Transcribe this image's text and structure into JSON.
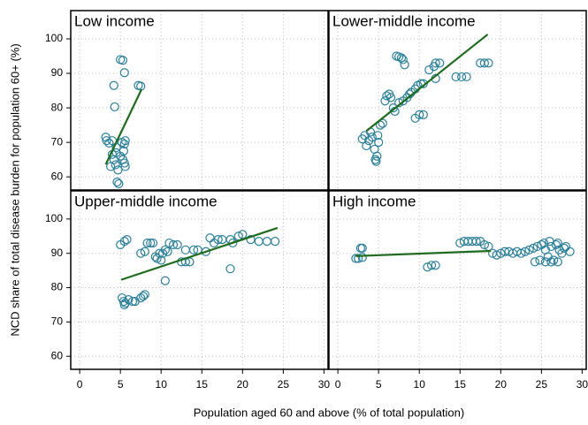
{
  "chart_data": [
    {
      "type": "scatter",
      "title": "Low income",
      "ylabel": "NCD share of total disease burden for population 60+ (%)",
      "xlabel": "Population aged 60 and above (% of total population)",
      "x": [
        3.2,
        3.3,
        3.6,
        4.0,
        4.2,
        4.3,
        4.5,
        4.2,
        4.4,
        4.7,
        4.6,
        4.8,
        5.0,
        5.3,
        5.5,
        5.2,
        5.5,
        5.4,
        5.3,
        5.5,
        5.6,
        5.0,
        4.0,
        3.8,
        7.2,
        7.5,
        4.5,
        5.6
      ],
      "y": [
        71.5,
        70.5,
        69.8,
        70.5,
        86.5,
        80.3,
        67,
        65,
        63.5,
        62,
        58.5,
        58,
        94,
        93.8,
        90.2,
        70,
        69.5,
        67.5,
        65,
        64,
        63,
        66,
        66.5,
        63,
        86.5,
        86.3,
        68.5,
        70.5
      ],
      "color": "#2b7f99",
      "fit": {
        "x": [
          3.2,
          7.6
        ],
        "y": [
          63.6,
          85.4
        ],
        "color": "#1e6b1e"
      },
      "xlim": [
        -1.1,
        30.5
      ],
      "ylim": [
        56.2,
        108.2
      ],
      "xticks": [
        0,
        5,
        10,
        15,
        20,
        25,
        30
      ],
      "yticks": [
        60,
        70,
        80,
        90,
        100
      ],
      "grid": true
    },
    {
      "type": "scatter",
      "title": "Lower-middle income",
      "x": [
        3.0,
        3.3,
        3.5,
        3.8,
        4.0,
        4.2,
        4.5,
        4.6,
        4.7,
        4.8,
        5.0,
        4.9,
        5.2,
        5.5,
        5.8,
        6.0,
        6.3,
        6.5,
        6.8,
        7.0,
        7.2,
        7.5,
        7.8,
        8.0,
        8.2,
        8.5,
        8.8,
        9.0,
        9.5,
        9.8,
        10.2,
        10.5,
        9.5,
        10.0,
        10.5,
        11.2,
        11.8,
        12.0,
        12.5,
        12.0,
        14.5,
        15.2,
        15.8,
        17.5,
        18.0,
        18.5,
        7.5,
        8.0
      ],
      "y": [
        71,
        72,
        69,
        70.5,
        73,
        71.5,
        68,
        65,
        64.5,
        66,
        70,
        72,
        75,
        75.5,
        82,
        83.5,
        84,
        83,
        80,
        79,
        95,
        94.8,
        94.5,
        94,
        92.5,
        83,
        84,
        84.5,
        85.5,
        86.5,
        87,
        87,
        77,
        78,
        78,
        91,
        92,
        93,
        93,
        88.5,
        89,
        89,
        89,
        93,
        93,
        93,
        81.5,
        82
      ],
      "color": "#2b7f99",
      "fit": {
        "x": [
          3.5,
          18.4
        ],
        "y": [
          73.3,
          101.3
        ],
        "color": "#1e6b1e"
      },
      "xlim": [
        -1.1,
        30.5
      ],
      "ylim": [
        56.2,
        108.2
      ],
      "xticks": [
        0,
        5,
        10,
        15,
        20,
        25,
        30
      ],
      "yticks": [
        60,
        70,
        80,
        90,
        100
      ],
      "grid": true
    },
    {
      "type": "scatter",
      "title": "Upper-middle income",
      "x": [
        5.0,
        5.5,
        5.8,
        5.2,
        5.4,
        5.6,
        5.5,
        6.0,
        6.5,
        6.8,
        7.5,
        7.8,
        8.0,
        7.5,
        8.0,
        8.3,
        8.7,
        9.0,
        9.3,
        9.5,
        9.8,
        10.2,
        10.5,
        10.8,
        10.0,
        11.0,
        11.5,
        12.0,
        12.5,
        13.0,
        13.5,
        13.0,
        14.0,
        14.5,
        15.5,
        16.0,
        16.5,
        17.0,
        17.5,
        18.5,
        18.8,
        19.5,
        20.0,
        21.0,
        22.0,
        23.0,
        24.0,
        18.5,
        10.5
      ],
      "y": [
        92.5,
        93.5,
        94,
        77,
        76,
        75.5,
        75,
        76.5,
        76,
        76,
        77,
        77.5,
        78,
        90,
        90.5,
        93,
        93,
        93,
        89,
        88.5,
        90,
        90,
        91,
        90.5,
        88,
        93,
        92.5,
        92.5,
        87.5,
        87.5,
        87.5,
        91,
        91,
        91,
        90.5,
        94.5,
        93,
        94,
        94,
        94,
        93,
        95,
        95.5,
        94,
        93.5,
        93.5,
        93.5,
        85.5,
        82
      ],
      "color": "#2b7f99",
      "fit": {
        "x": [
          5.1,
          24.3
        ],
        "y": [
          82.3,
          97.4
        ],
        "color": "#1e6b1e"
      },
      "xlim": [
        -1.1,
        30.5
      ],
      "ylim": [
        56.2,
        108.2
      ],
      "xticks": [
        0,
        5,
        10,
        15,
        20,
        25,
        30
      ],
      "yticks": [
        60,
        70,
        80,
        90,
        100
      ],
      "grid": true
    },
    {
      "type": "scatter",
      "title": "High income",
      "x": [
        2.2,
        2.5,
        2.8,
        3.0,
        3.0,
        11.0,
        11.5,
        12.0,
        15.0,
        15.5,
        16.0,
        16.5,
        17.0,
        17.5,
        18.0,
        18.5,
        19.0,
        19.5,
        20.0,
        20.5,
        21.0,
        21.5,
        22.0,
        22.5,
        23.0,
        23.5,
        24.0,
        24.5,
        24.2,
        24.8,
        25.0,
        25.3,
        25.5,
        25.8,
        26.0,
        26.2,
        26.5,
        26.8,
        27.0,
        27.2,
        27.5,
        27.8,
        28.0,
        28.5,
        25.5,
        26.2,
        27.0
      ],
      "y": [
        88.5,
        88.5,
        91.5,
        91.5,
        88.8,
        86,
        86.5,
        86.5,
        93,
        93.5,
        93.5,
        93.5,
        93.5,
        93.5,
        92.5,
        92,
        90,
        89.5,
        90,
        90.5,
        90.5,
        90,
        90.5,
        90,
        90.5,
        91,
        91.5,
        92,
        87.5,
        88,
        92.5,
        93,
        91,
        89,
        93.5,
        92,
        88,
        92.5,
        93,
        91,
        90,
        91.5,
        92,
        90.5,
        87.5,
        87.5,
        87.5
      ],
      "color": "#2b7f99",
      "fit": {
        "x": [
          2.2,
          18.8
        ],
        "y": [
          89.2,
          90.7
        ],
        "color": "#1e6b1e"
      },
      "xlim": [
        -1.1,
        30.5
      ],
      "ylim": [
        56.2,
        108.2
      ],
      "xticks": [
        0,
        5,
        10,
        15,
        20,
        25,
        30
      ],
      "yticks": [
        60,
        70,
        80,
        90,
        100
      ],
      "grid": true
    }
  ]
}
